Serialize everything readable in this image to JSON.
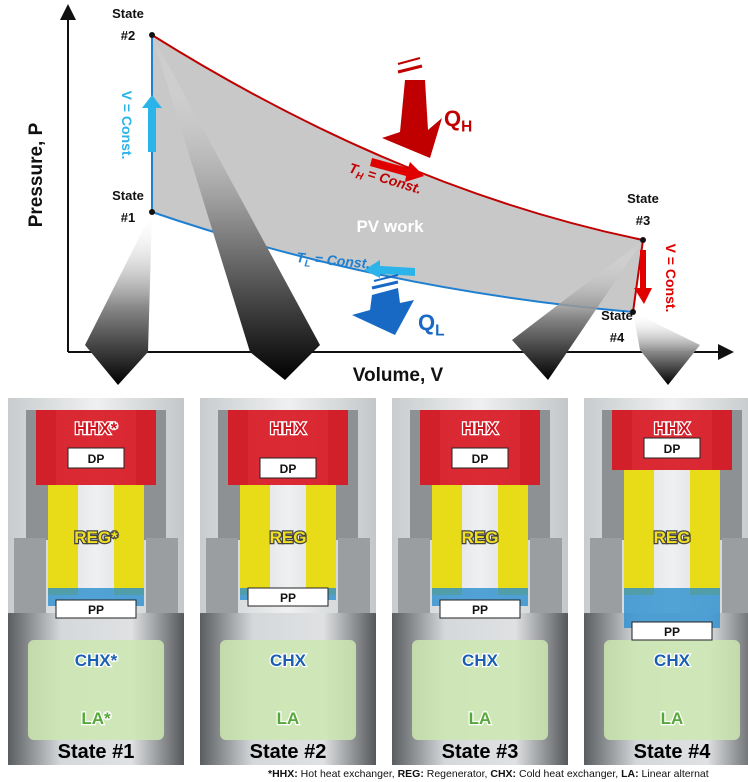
{
  "axes": {
    "y_label": "Pressure, P",
    "x_label": "Volume, V"
  },
  "states": [
    {
      "line1": "State",
      "line2": "#1"
    },
    {
      "line1": "State",
      "line2": "#2"
    },
    {
      "line1": "State",
      "line2": "#3"
    },
    {
      "line1": "State",
      "line2": "#4"
    }
  ],
  "processes": {
    "v_const_left": "V = Const.",
    "v_const_right": "V = Const.",
    "t_hot": {
      "symbol": "T",
      "sub": "H",
      "text": " = Const."
    },
    "t_low": {
      "symbol": "T",
      "sub": "L",
      "text": " = Const."
    }
  },
  "heat": {
    "q_hot": {
      "symbol": "Q",
      "sub": "H"
    },
    "q_low": {
      "symbol": "Q",
      "sub": "L"
    }
  },
  "pv_work": "PV work",
  "panels": [
    {
      "title": "State #1",
      "hhx": "HHX*",
      "dp": "DP",
      "reg": "REG*",
      "pp": "PP",
      "chx": "CHX*",
      "la": "LA*"
    },
    {
      "title": "State #2",
      "hhx": "HHX",
      "dp": "DP",
      "reg": "REG",
      "pp": "PP",
      "chx": "CHX",
      "la": "LA"
    },
    {
      "title": "State #3",
      "hhx": "HHX",
      "dp": "DP",
      "reg": "REG",
      "pp": "PP",
      "chx": "CHX",
      "la": "LA"
    },
    {
      "title": "State #4",
      "hhx": "HHX",
      "dp": "DP",
      "reg": "REG",
      "pp": "PP",
      "chx": "CHX",
      "la": "LA"
    }
  ],
  "footnote": [
    {
      "text": "*HHX:",
      "bold": true
    },
    {
      "text": " Hot heat exchanger, ",
      "bold": false
    },
    {
      "text": "REG:",
      "bold": true
    },
    {
      "text": " Regenerator, ",
      "bold": false
    },
    {
      "text": "CHX:",
      "bold": true
    },
    {
      "text": " Cold heat exchanger, ",
      "bold": false
    },
    {
      "text": "LA:",
      "bold": true
    },
    {
      "text": " Linear alternat",
      "bold": false
    }
  ]
}
